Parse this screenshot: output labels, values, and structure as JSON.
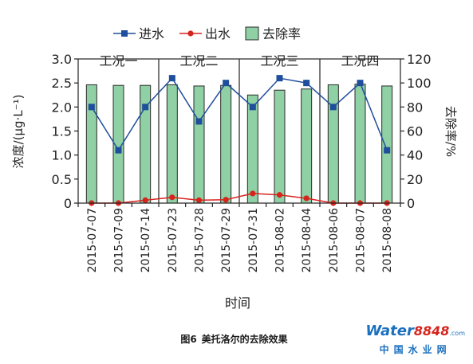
{
  "chart_data": {
    "type": "bar+line",
    "xlabel": "时间",
    "ylabel_left": "浓度/(μg·L⁻¹)",
    "ylabel_right": "去除率/%",
    "ylim_left": [
      0,
      3.0
    ],
    "ylim_right": [
      0,
      120
    ],
    "yticks_left": [
      "0",
      "0.5",
      "1.0",
      "1.5",
      "2.0",
      "2.5",
      "3.0"
    ],
    "yticks_right": [
      "0",
      "20",
      "40",
      "60",
      "80",
      "100",
      "120"
    ],
    "categories": [
      "2015-07-07",
      "2015-07-09",
      "2015-07-14",
      "2015-07-23",
      "2015-07-28",
      "2015-07-29",
      "2015-07-31",
      "2015-08-02",
      "2015-08-04",
      "2015-08-06",
      "2015-08-07",
      "2015-08-08"
    ],
    "groups": [
      {
        "label": "工况一",
        "categories": 3
      },
      {
        "label": "工况二",
        "categories": 3
      },
      {
        "label": "工况三",
        "categories": 3
      },
      {
        "label": "工况四",
        "categories": 3
      }
    ],
    "series": [
      {
        "name": "进水",
        "kind": "line",
        "axis": "left",
        "color": "#1f4e9c",
        "marker": "square",
        "values": [
          2.0,
          1.1,
          2.0,
          2.6,
          1.7,
          2.5,
          2.0,
          2.6,
          2.5,
          2.0,
          2.5,
          1.1
        ]
      },
      {
        "name": "出水",
        "kind": "line",
        "axis": "left",
        "color": "#d6241d",
        "marker": "circle",
        "values": [
          0.0,
          0.0,
          0.06,
          0.12,
          0.06,
          0.07,
          0.2,
          0.17,
          0.1,
          0.0,
          0.0,
          0.0
        ]
      },
      {
        "name": "去除率",
        "kind": "bar",
        "axis": "right",
        "color": "#8fd0a4",
        "values": [
          98.5,
          98,
          98,
          98.5,
          97.5,
          98,
          90,
          94,
          95,
          98.5,
          99,
          97.5
        ]
      }
    ],
    "legend_position": "top"
  },
  "caption": {
    "figure_label": "图6",
    "title": "美托洛尔的去除效果"
  },
  "watermark": {
    "brand_latin": "Water",
    "brand_number": "8848",
    "brand_suffix": ".com",
    "brand_cn": "中国水业网"
  }
}
